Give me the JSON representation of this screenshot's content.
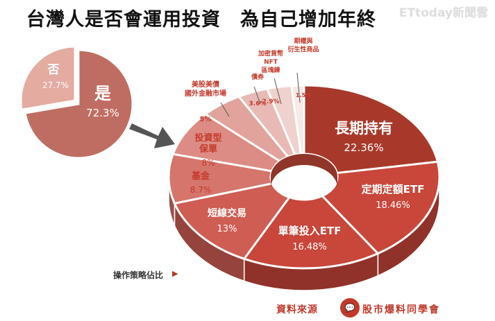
{
  "title": "台灣人是否會運用投資　為自己增加年終",
  "logo": "ETtoday新聞雲",
  "legend_label": "操作策略佔比",
  "legend_arrow": "▶",
  "source_label": "資料來源",
  "brand_name": "股市爆料同學會",
  "colors": {
    "no": "#e4aba1",
    "yes": "#bf6d62",
    "arrow": "#555555",
    "top_dark": "#a8392a",
    "top_mid": "#c8463a",
    "top_light": "#f6e9e6",
    "label_dark": "#ffffff",
    "label_light": "#c43a2c"
  },
  "chart_data": [
    {
      "type": "pie",
      "slices": [
        {
          "label": "否",
          "value": 27.7,
          "text": "27.7%"
        },
        {
          "label": "是",
          "value": 72.3,
          "text": "72.3%"
        }
      ]
    },
    {
      "type": "pie",
      "donut": true,
      "slices": [
        {
          "label": "長期持有",
          "value": 22.36,
          "text": "22.36%"
        },
        {
          "label": "定期定額ETF",
          "value": 18.46,
          "text": "18.46%"
        },
        {
          "label": "單筆投入ETF",
          "value": 16.48,
          "text": "16.48%"
        },
        {
          "label": "短線交易",
          "value": 13,
          "text": "13%"
        },
        {
          "label": "基金",
          "value": 8.7,
          "text": "8.7%"
        },
        {
          "label": "投資型\n保單",
          "value": 8,
          "text": "8%"
        },
        {
          "label": "美股美債\n國外金融市場",
          "value": 5,
          "text": "5%"
        },
        {
          "label": "債券",
          "value": 3.6,
          "text": "3.6%"
        },
        {
          "label": "加密貨幣\nNFT\n區塊練",
          "value": 2.9,
          "text": "2.9%"
        },
        {
          "label": "期權與\n衍生性商品",
          "value": 1.5,
          "text": "1.5%"
        }
      ]
    }
  ]
}
